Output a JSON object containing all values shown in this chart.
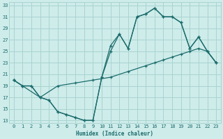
{
  "xlabel": "Humidex (Indice chaleur)",
  "bg_color": "#ceecea",
  "grid_color": "#a8d4d0",
  "line_color": "#1a6b6b",
  "xlim": [
    -0.5,
    23.5
  ],
  "ylim": [
    12.5,
    33.5
  ],
  "xticks": [
    0,
    1,
    2,
    3,
    4,
    5,
    6,
    7,
    8,
    9,
    10,
    11,
    12,
    13,
    14,
    15,
    16,
    17,
    18,
    19,
    20,
    21,
    22,
    23
  ],
  "yticks": [
    13,
    15,
    17,
    19,
    21,
    23,
    25,
    27,
    29,
    31,
    33
  ],
  "line1_x": [
    0,
    1,
    2,
    3,
    4,
    5,
    6,
    7,
    8,
    9,
    10,
    11,
    12,
    13,
    14,
    15,
    16,
    17,
    18,
    19,
    20,
    21,
    22,
    23
  ],
  "line1_y": [
    20,
    19,
    19,
    17,
    16.5,
    14.5,
    14,
    13.5,
    13,
    13,
    20.5,
    26,
    28,
    25.5,
    31,
    31.5,
    32.5,
    31,
    31,
    30,
    25.5,
    27.5,
    25,
    23
  ],
  "line2_x": [
    0,
    1,
    2,
    3,
    5,
    7,
    9,
    11,
    13,
    15,
    16,
    17,
    18,
    19,
    20,
    21,
    22,
    23
  ],
  "line2_y": [
    20,
    19,
    19,
    17,
    19,
    19.5,
    20,
    20.5,
    21.5,
    22.5,
    23,
    23.5,
    24,
    24.5,
    25,
    25.5,
    25,
    23
  ],
  "line3_x": [
    0,
    1,
    3,
    4,
    5,
    6,
    7,
    8,
    9,
    10,
    11,
    12,
    13,
    14,
    15,
    16,
    17,
    18,
    19,
    20,
    21,
    22,
    23
  ],
  "line3_y": [
    20,
    19,
    17,
    16.5,
    14.5,
    14,
    13.5,
    13,
    13,
    20.5,
    25,
    28,
    25.5,
    31,
    31.5,
    32.5,
    31,
    31,
    30,
    25.5,
    27.5,
    25,
    23
  ]
}
